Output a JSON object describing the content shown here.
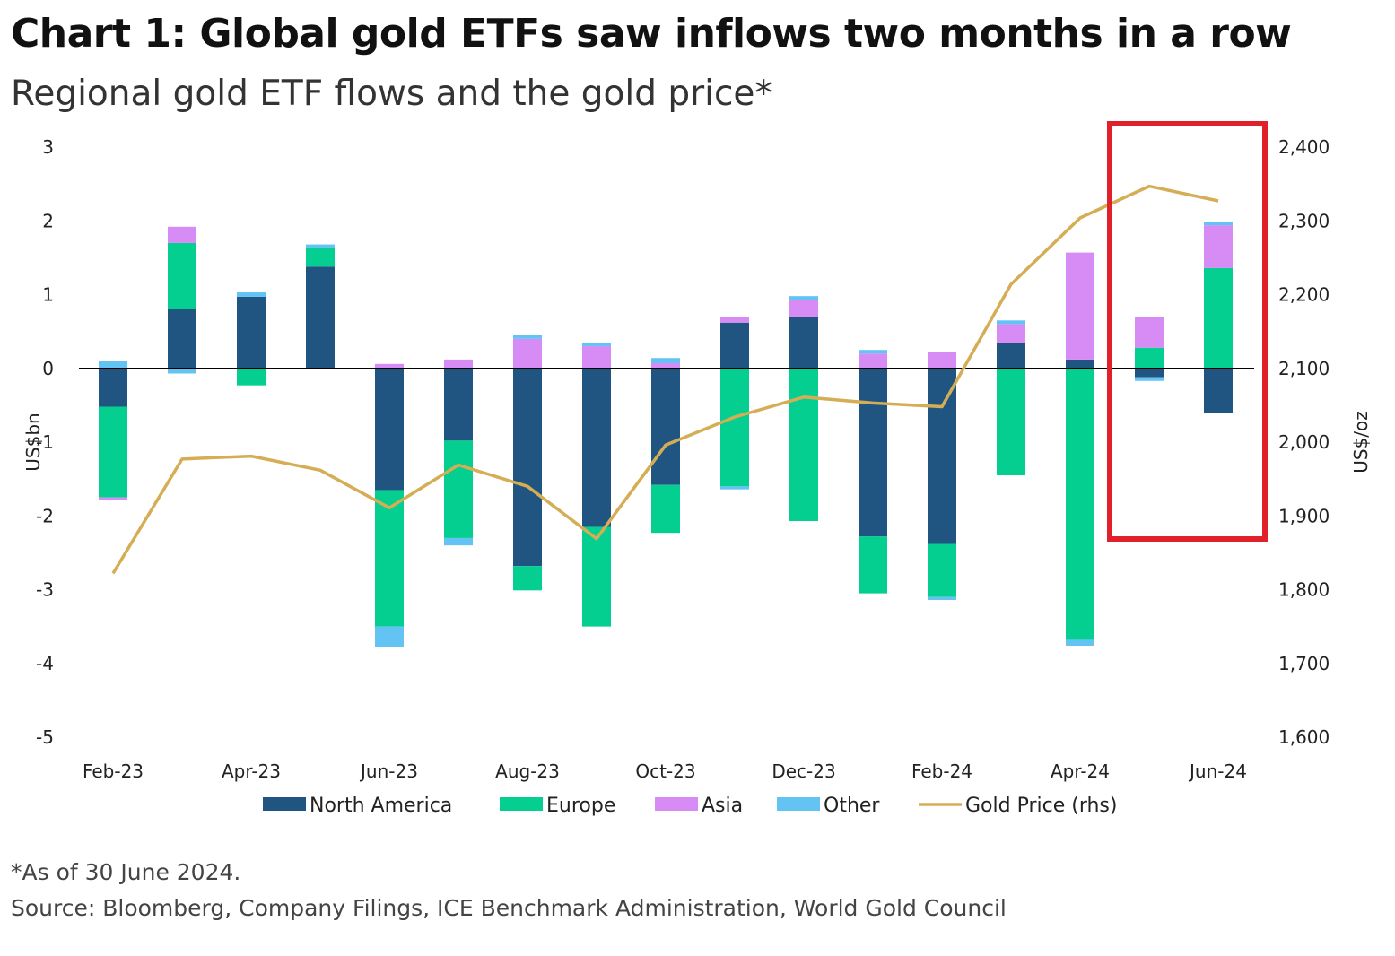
{
  "title": "Chart 1: Global gold ETFs saw inflows two months in a row",
  "subtitle": "Regional gold ETF flows and the gold price*",
  "footnote": "*As of 30 June 2024.",
  "source": "Source: Bloomberg, Company Filings, ICE Benchmark Administration, World Gold Council",
  "chart_data": {
    "type": "bar",
    "stacked": true,
    "categories": [
      "Feb-23",
      "Mar-23",
      "Apr-23",
      "May-23",
      "Jun-23",
      "Jul-23",
      "Aug-23",
      "Sep-23",
      "Oct-23",
      "Nov-23",
      "Dec-23",
      "Jan-24",
      "Feb-24",
      "Mar-24",
      "Apr-24",
      "May-24",
      "Jun-24"
    ],
    "x_tick_labels": [
      "Feb-23",
      "Apr-23",
      "Jun-23",
      "Aug-23",
      "Oct-23",
      "Dec-23",
      "Feb-24",
      "Apr-24",
      "Jun-24"
    ],
    "ylabel": "US$bn",
    "ylabel_right": "US$/oz",
    "ylim": [
      -5,
      3
    ],
    "yticks": [
      3,
      2,
      1,
      0,
      -1,
      -2,
      -3,
      -4,
      -5
    ],
    "ylim_right": [
      1600,
      2400
    ],
    "yticks_right": [
      "2,400",
      "2,300",
      "2,200",
      "2,100",
      "2,000",
      "1,900",
      "1,800",
      "1,700",
      "1,600"
    ],
    "series": [
      {
        "name": "North America",
        "color": "#215581",
        "values": [
          -0.52,
          0.8,
          0.97,
          1.38,
          -1.65,
          -0.98,
          -2.68,
          -2.15,
          -1.58,
          0.62,
          0.7,
          -2.28,
          -2.38,
          0.35,
          0.12,
          -0.12,
          -0.6
        ]
      },
      {
        "name": "Europe",
        "color": "#04CF91",
        "values": [
          -1.23,
          0.9,
          -0.23,
          0.25,
          -1.85,
          -1.32,
          -0.33,
          -1.35,
          -0.65,
          -1.6,
          -2.07,
          -0.77,
          -0.72,
          -1.45,
          -3.68,
          0.28,
          1.36
        ]
      },
      {
        "name": "Asia",
        "color": "#D68BF5",
        "values": [
          -0.04,
          0.22,
          0.0,
          0.0,
          0.06,
          0.12,
          0.4,
          0.3,
          0.07,
          0.08,
          0.23,
          0.2,
          0.22,
          0.25,
          1.45,
          0.42,
          0.58
        ]
      },
      {
        "name": "Other",
        "color": "#63C4F4",
        "values": [
          0.1,
          -0.07,
          0.06,
          0.05,
          -0.28,
          -0.1,
          0.05,
          0.05,
          0.07,
          -0.04,
          0.05,
          0.05,
          -0.04,
          0.05,
          -0.08,
          -0.05,
          0.05
        ]
      }
    ],
    "line_series": {
      "name": "Gold Price (rhs)",
      "color": "#D4AD55",
      "axis": "right",
      "values": [
        1822,
        1977,
        1981,
        1962,
        1911,
        1969,
        1940,
        1869,
        1996,
        2034,
        2061,
        2053,
        2048,
        2214,
        2304,
        2347,
        2327
      ]
    },
    "legend_position": "bottom",
    "highlight_box": {
      "color": "#E0202A",
      "covers": [
        "May-24",
        "Jun-24"
      ]
    }
  }
}
